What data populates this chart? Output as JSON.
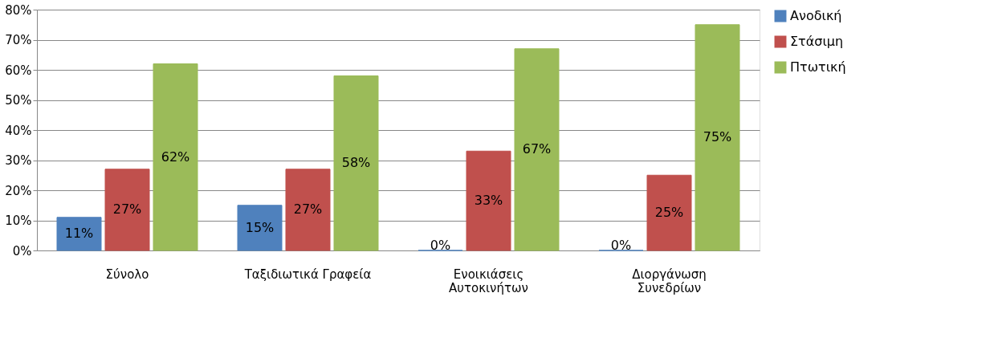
{
  "chart_data": {
    "type": "bar",
    "categories": [
      "Σύνολο",
      "Ταξιδιωτικά Γραφεία",
      "Ενοικιάσεις Αυτοκινήτων",
      "Διοργάνωση Συνεδρίων"
    ],
    "series": [
      {
        "name": "Ανοδική",
        "color": "#4f81bd",
        "values": [
          11,
          15,
          0,
          0
        ],
        "value_labels": [
          "11%",
          "15%",
          "0%",
          "0%"
        ]
      },
      {
        "name": "Στάσιμη",
        "color": "#c0504d",
        "values": [
          27,
          27,
          33,
          25
        ],
        "value_labels": [
          "27%",
          "27%",
          "33%",
          "25%"
        ]
      },
      {
        "name": "Πτωτική",
        "color": "#9bbb59",
        "values": [
          62,
          58,
          67,
          75
        ],
        "value_labels": [
          "62%",
          "58%",
          "67%",
          "75%"
        ]
      }
    ],
    "ylim": [
      0,
      80
    ],
    "yticks": [
      {
        "value": 0,
        "label": "0%"
      },
      {
        "value": 10,
        "label": "10%"
      },
      {
        "value": 20,
        "label": "20%"
      },
      {
        "value": 30,
        "label": "30%"
      },
      {
        "value": 40,
        "label": "40%"
      },
      {
        "value": 50,
        "label": "50%"
      },
      {
        "value": 60,
        "label": "60%"
      },
      {
        "value": 70,
        "label": "70%"
      },
      {
        "value": 80,
        "label": "80%"
      }
    ],
    "grid": "y",
    "legend": "right"
  }
}
